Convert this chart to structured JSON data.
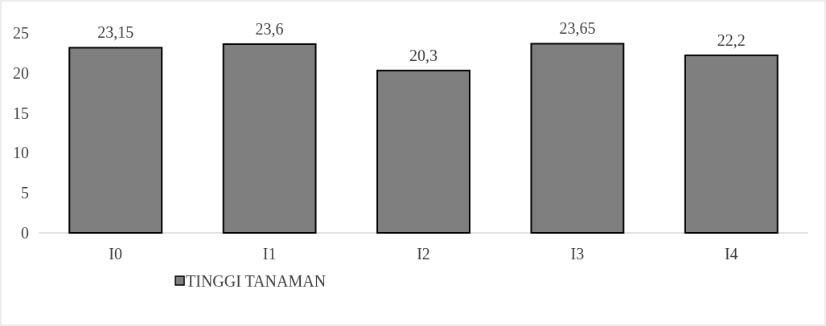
{
  "chart_data": {
    "type": "bar",
    "categories": [
      "I0",
      "I1",
      "I2",
      "I3",
      "I4"
    ],
    "series": [
      {
        "name": "TINGGI TANAMAN",
        "color": "#7f7f7f",
        "values": [
          23.15,
          23.6,
          20.3,
          23.65,
          22.2
        ],
        "value_labels": [
          "23,15",
          "23,6",
          "20,3",
          "23,65",
          "22,2"
        ]
      }
    ],
    "ylim": [
      0,
      25
    ],
    "yticks": [
      0,
      5,
      10,
      15,
      20,
      25
    ],
    "grid": false,
    "legend": "bottom"
  }
}
